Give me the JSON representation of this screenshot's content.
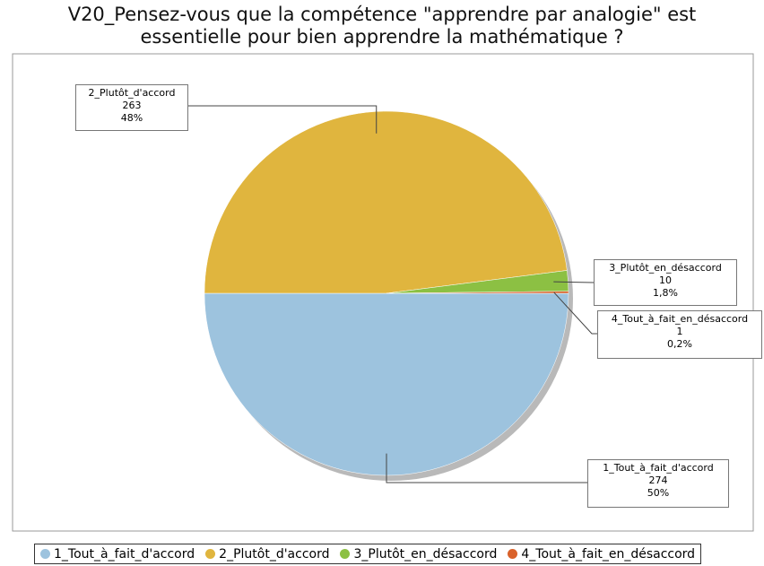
{
  "chart_data": {
    "type": "pie",
    "title": "V20_Pensez-vous que la compétence \"apprendre par analogie\" est essentielle pour bien apprendre la mathématique ?",
    "categories": [
      "1_Tout_à_fait_d'accord",
      "2_Plutôt_d'accord",
      "3_Plutôt_en_désaccord",
      "4_Tout_à_fait_en_désaccord"
    ],
    "values": [
      274,
      263,
      10,
      1
    ],
    "percentages": [
      50,
      48,
      1.8,
      0.2
    ],
    "percentage_labels": [
      "50%",
      "48%",
      "1,8%",
      "0,2%"
    ],
    "colors": [
      "#9dc3de",
      "#e0b53e",
      "#8cc043",
      "#d9622b"
    ],
    "legend": "bottom"
  }
}
